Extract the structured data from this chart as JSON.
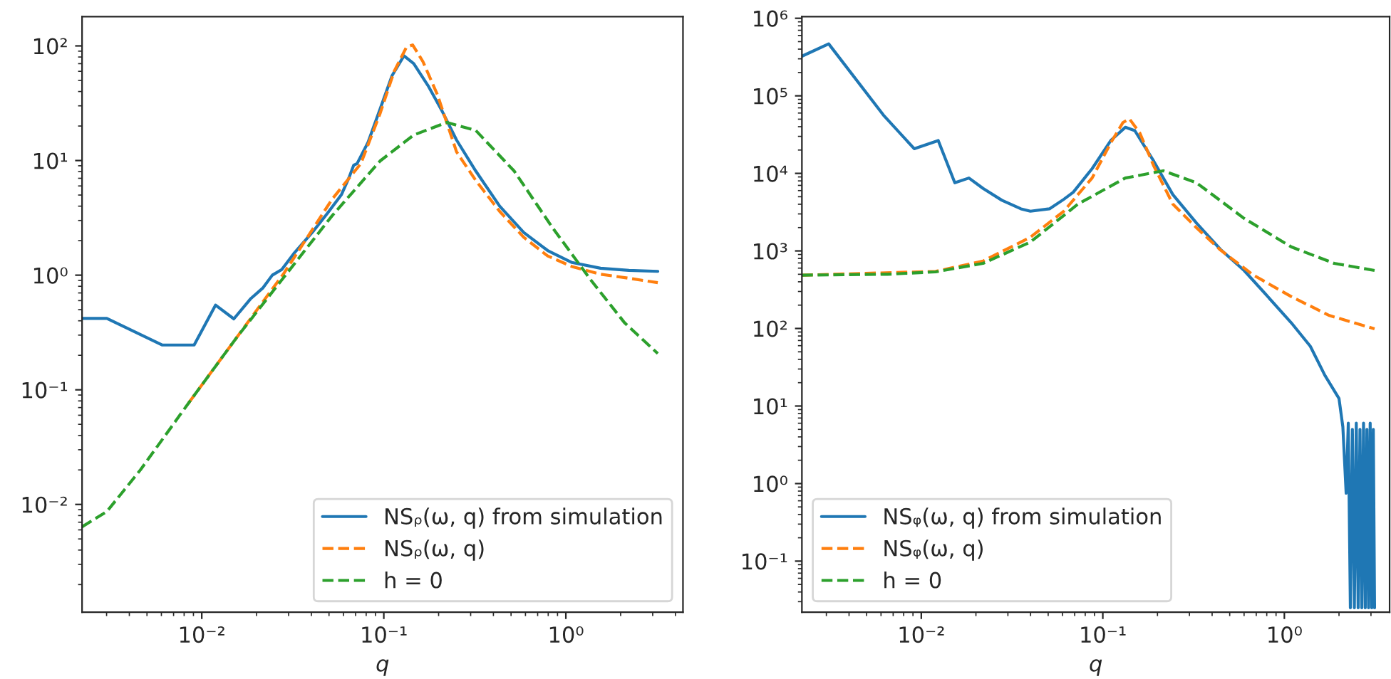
{
  "chart_data": [
    {
      "type": "line",
      "xlabel": "q",
      "log": "xy",
      "legend": "bottom right",
      "xlim": [
        0.0022,
        4.4
      ],
      "ylim": [
        0.00115,
        180
      ],
      "xticks": [
        {
          "value": 0.01,
          "label": "10⁻²"
        },
        {
          "value": 0.1,
          "label": "10⁻¹"
        },
        {
          "value": 1,
          "label": "10⁰"
        }
      ],
      "yticks": [
        {
          "value": 0.01,
          "label": "10⁻²"
        },
        {
          "value": 0.1,
          "label": "10⁻¹"
        },
        {
          "value": 1,
          "label": "10⁰"
        },
        {
          "value": 10,
          "label": "10¹"
        },
        {
          "value": 100,
          "label": "10²"
        }
      ],
      "series": [
        {
          "name": "NSᵨ(ω, q) from simulation",
          "color": "#1f77b4",
          "line_style": "solid",
          "x": [
            0.0022,
            0.00301,
            0.00605,
            0.00908,
            0.0119,
            0.015,
            0.0185,
            0.0216,
            0.0244,
            0.0275,
            0.032,
            0.0408,
            0.0489,
            0.0586,
            0.0643,
            0.0683,
            0.0713,
            0.0819,
            0.0953,
            0.111,
            0.129,
            0.146,
            0.175,
            0.209,
            0.251,
            0.32,
            0.433,
            0.587,
            0.795,
            1.08,
            1.55,
            2.22,
            3.2
          ],
          "values": [
            0.42,
            0.42,
            0.246,
            0.246,
            0.548,
            0.416,
            0.62,
            0.77,
            1.0,
            1.12,
            1.54,
            2.4,
            3.45,
            5.06,
            7.06,
            9.1,
            9.4,
            14.4,
            28,
            55,
            82,
            70,
            45,
            27,
            15.1,
            8.1,
            4.0,
            2.36,
            1.64,
            1.29,
            1.15,
            1.1,
            1.08
          ]
        },
        {
          "name": "NSᵨ(ω, q)",
          "color": "#ff7f0e",
          "line_style": "dashed",
          "x": [
            0.00844,
            0.0155,
            0.0284,
            0.052,
            0.0748,
            0.0953,
            0.114,
            0.133,
            0.144,
            0.164,
            0.197,
            0.251,
            0.32,
            0.433,
            0.587,
            0.795,
            1.08,
            1.55,
            2.22,
            3.2
          ],
          "values": [
            0.0762,
            0.284,
            1.05,
            4.6,
            9.4,
            25.6,
            60,
            97,
            102,
            73,
            37.5,
            11.9,
            6.7,
            3.6,
            2.14,
            1.47,
            1.19,
            1.02,
            0.94,
            0.86
          ]
        },
        {
          "name": "h = 0",
          "color": "#2ca02c",
          "line_style": "dashed",
          "x": [
            0.0022,
            0.00301,
            0.0046,
            0.00844,
            0.0155,
            0.0284,
            0.052,
            0.0953,
            0.146,
            0.222,
            0.32,
            0.52,
            0.844,
            1.37,
            2.1,
            3.2
          ],
          "values": [
            0.00638,
            0.00867,
            0.02,
            0.0762,
            0.284,
            0.97,
            3.3,
            9.9,
            16.7,
            21.5,
            18.3,
            8.1,
            2.6,
            0.91,
            0.385,
            0.207
          ]
        }
      ]
    },
    {
      "type": "line",
      "xlabel": "q",
      "log": "xy",
      "legend": "bottom left",
      "xlim": [
        0.0022,
        3.8
      ],
      "ylim": [
        0.022,
        1050000
      ],
      "xticks": [
        {
          "value": 0.01,
          "label": "10⁻²"
        },
        {
          "value": 0.1,
          "label": "10⁻¹"
        },
        {
          "value": 1,
          "label": "10⁰"
        }
      ],
      "yticks": [
        {
          "value": 0.1,
          "label": "10⁻¹"
        },
        {
          "value": 1,
          "label": "10⁰"
        },
        {
          "value": 10,
          "label": "10¹"
        },
        {
          "value": 100,
          "label": "10²"
        },
        {
          "value": 1000,
          "label": "10³"
        },
        {
          "value": 10000,
          "label": "10⁴"
        },
        {
          "value": 100000,
          "label": "10⁵"
        },
        {
          "value": 1000000,
          "label": "10⁶"
        }
      ],
      "series": [
        {
          "name": "NSᵩ(ω, q) from simulation",
          "color": "#1f77b4",
          "line_style": "solid",
          "x": [
            0.0022,
            0.00309,
            0.00618,
            0.00914,
            0.0124,
            0.0153,
            0.0183,
            0.0219,
            0.0278,
            0.0354,
            0.0399,
            0.0508,
            0.0609,
            0.0687,
            0.0873,
            0.111,
            0.133,
            0.15,
            0.191,
            0.243,
            0.328,
            0.444,
            0.6,
            0.81,
            1.09,
            1.39,
            1.67,
            2.0,
            2.1,
            2.19,
            2.25,
            2.31,
            2.37,
            2.43,
            2.49,
            2.55,
            2.61,
            2.67,
            2.73,
            2.79,
            2.85,
            2.91,
            2.97,
            3.03,
            3.09,
            3.14
          ],
          "values": [
            324000,
            468000,
            56600,
            20800,
            26500,
            7570,
            8710,
            6400,
            4500,
            3490,
            3250,
            3490,
            4620,
            5710,
            11500,
            26800,
            39300,
            35600,
            14300,
            5330,
            2290,
            1050,
            560,
            258,
            119,
            59,
            25,
            12.5,
            5.4,
            0.75,
            6,
            0.025,
            5,
            0.025,
            6,
            0.025,
            5,
            0.025,
            6,
            0.025,
            5,
            0.025,
            6,
            0.025,
            5,
            0.025
          ]
        },
        {
          "name": "NSᵩ(ω, q)",
          "color": "#ff7f0e",
          "line_style": "dashed",
          "x": [
            0.0022,
            0.012,
            0.0219,
            0.0399,
            0.0609,
            0.0873,
            0.111,
            0.129,
            0.14,
            0.16,
            0.191,
            0.243,
            0.328,
            0.444,
            0.676,
            1.09,
            1.77,
            3.14
          ],
          "values": [
            487,
            545,
            741,
            1500,
            3250,
            8710,
            25100,
            45200,
            50600,
            33100,
            12400,
            4020,
            1990,
            1030,
            487,
            258,
            147,
            99
          ]
        },
        {
          "name": "h = 0",
          "color": "#2ca02c",
          "line_style": "dashed",
          "x": [
            0.0022,
            0.0065,
            0.012,
            0.0219,
            0.0399,
            0.073,
            0.133,
            0.215,
            0.328,
            0.6,
            1.09,
            1.88,
            3.14
          ],
          "values": [
            487,
            500,
            537,
            692,
            1300,
            4020,
            8710,
            10800,
            7570,
            2630,
            1130,
            692,
            560
          ]
        }
      ]
    }
  ]
}
